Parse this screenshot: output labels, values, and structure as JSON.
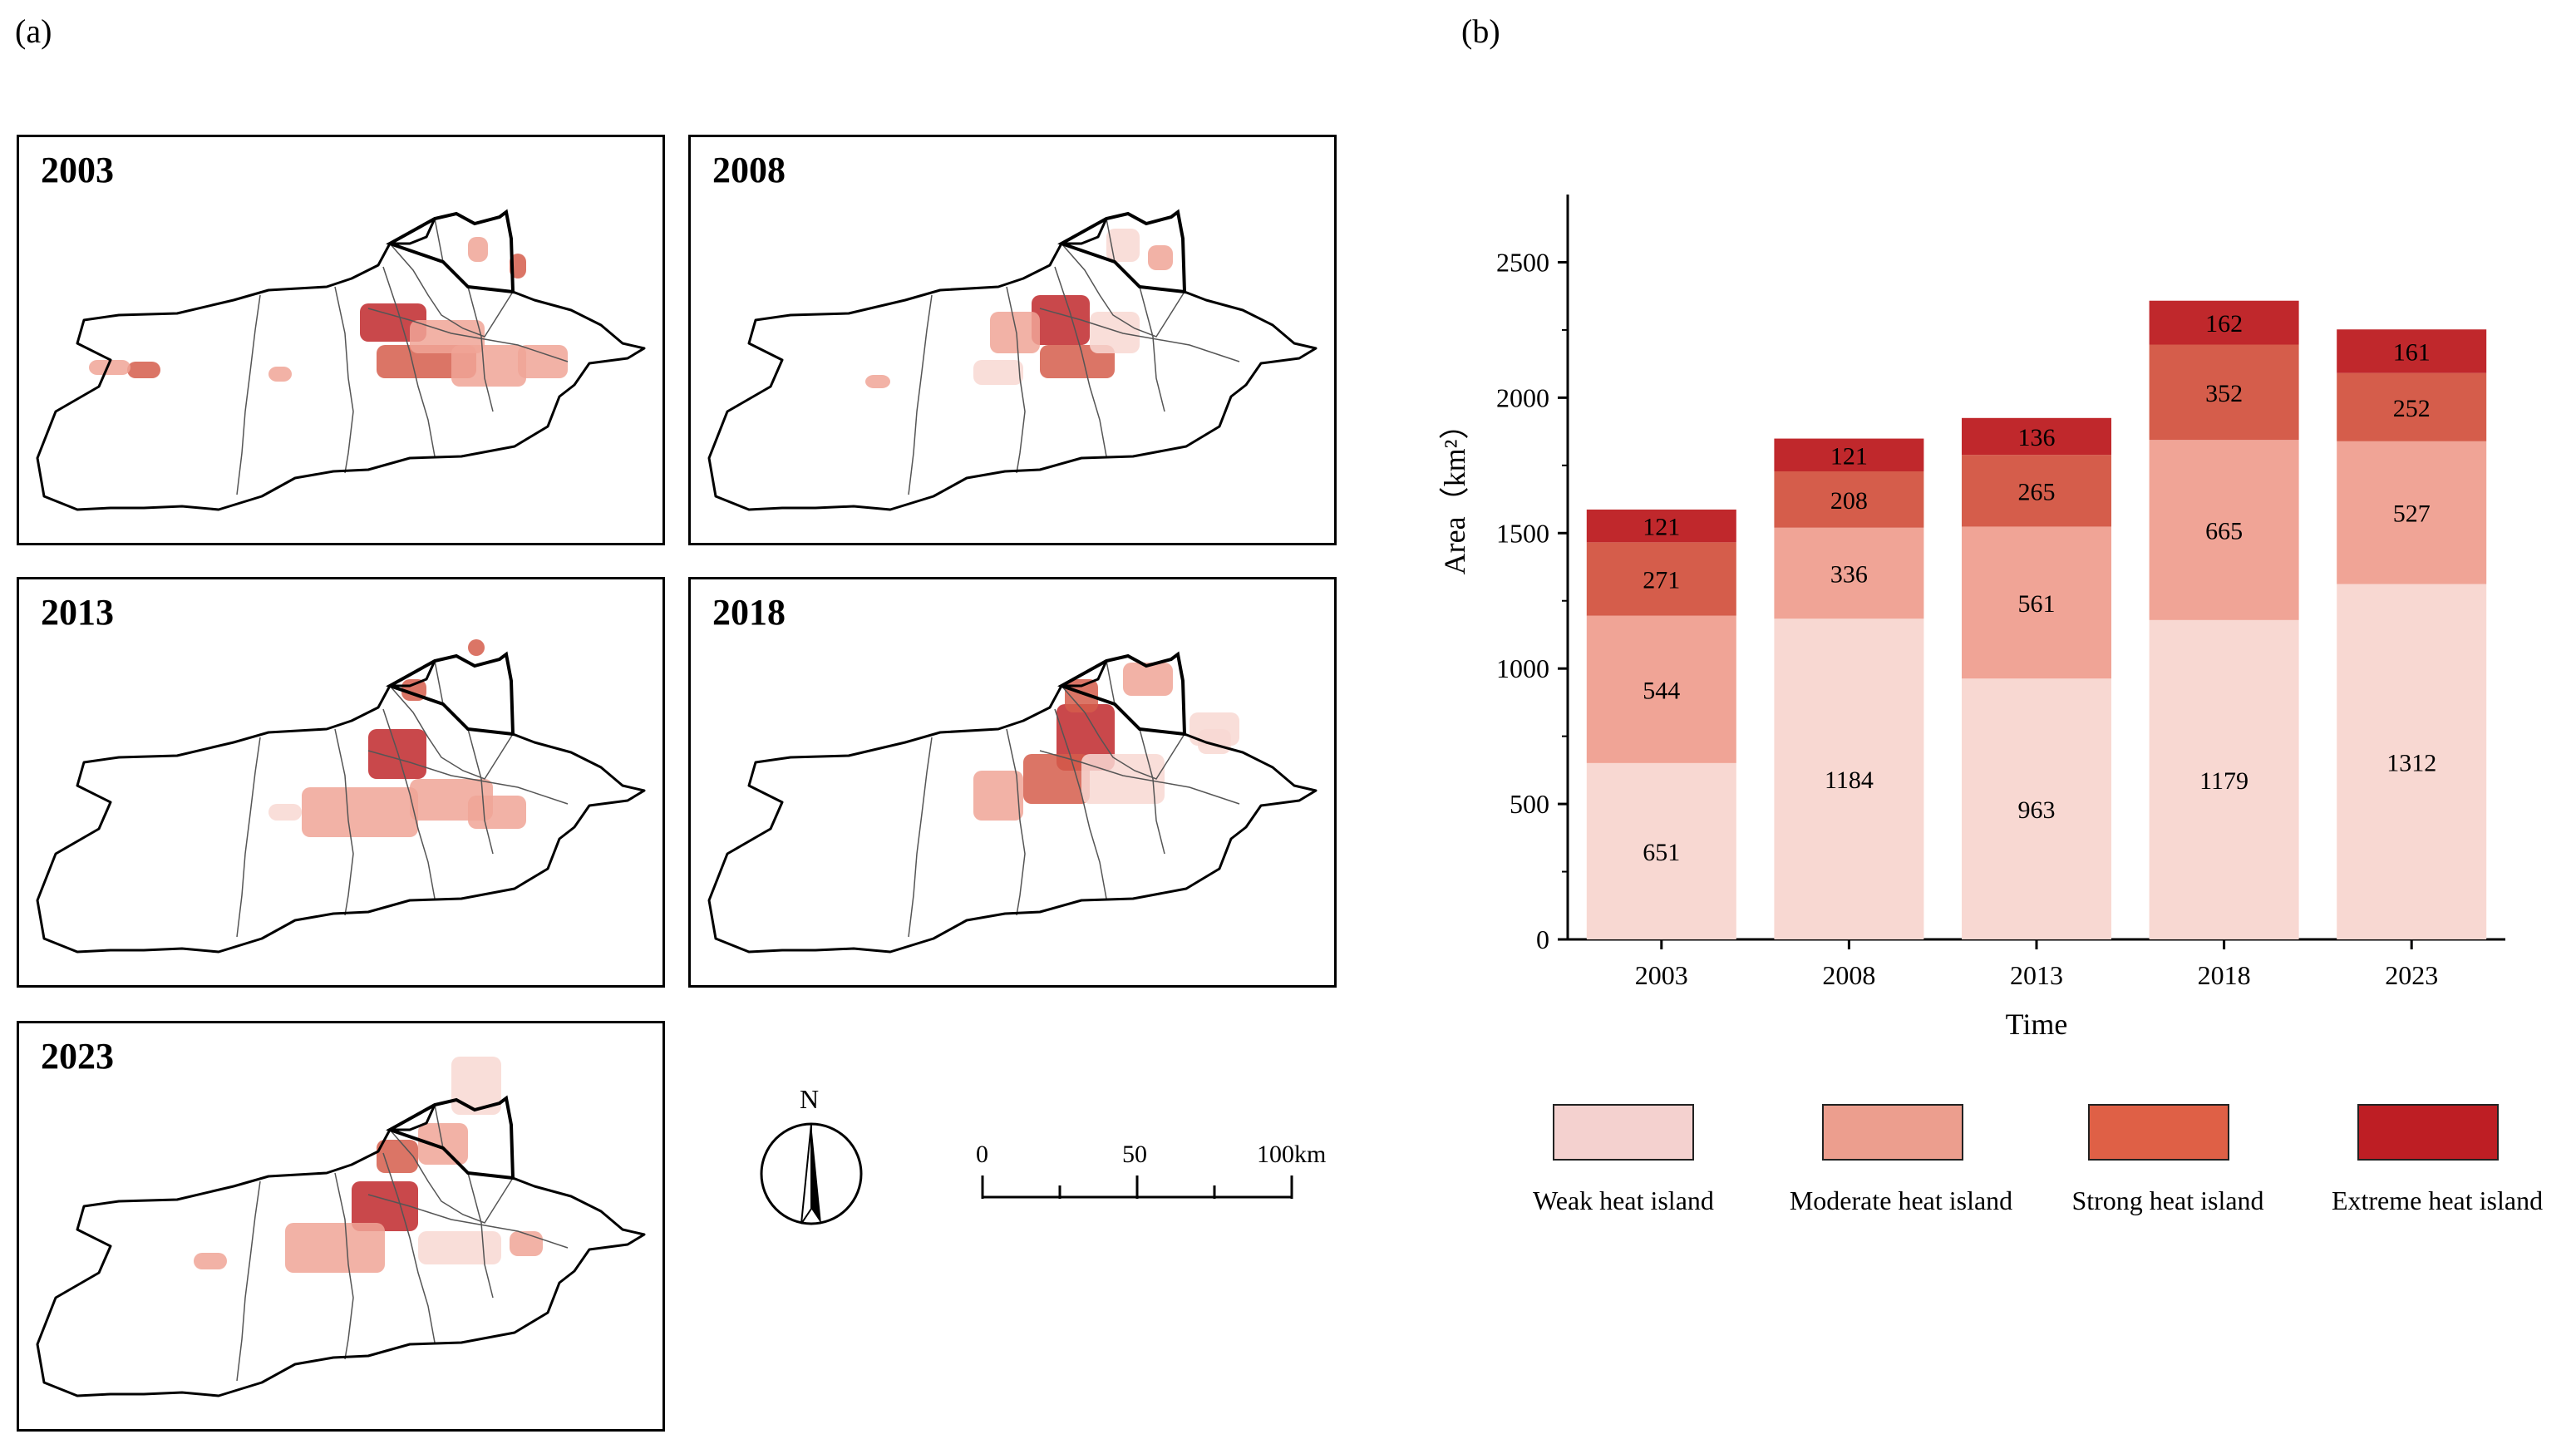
{
  "panel_a": {
    "label": "(a)"
  },
  "panel_b": {
    "label": "(b)"
  },
  "maps": [
    {
      "year": "2003"
    },
    {
      "year": "2008"
    },
    {
      "year": "2013"
    },
    {
      "year": "2018"
    },
    {
      "year": "2023"
    }
  ],
  "north_arrow": {
    "label": "N"
  },
  "scale_bar": {
    "ticks": [
      "0",
      "50",
      "100km"
    ]
  },
  "colors": {
    "weak": "#f8d8d2",
    "moderate": "#f0a496",
    "strong": "#d55d4b",
    "extreme": "#c0282c",
    "legend_weak": "#f4d1cf",
    "legend_moderate": "#ec9e8e",
    "legend_strong": "#df6046",
    "legend_extreme": "#be1e24",
    "outline": "#000000"
  },
  "chart_data": {
    "type": "bar",
    "stacked": true,
    "categories": [
      "2003",
      "2008",
      "2013",
      "2018",
      "2023"
    ],
    "series": [
      {
        "name": "Weak heat island",
        "key": "weak",
        "values": [
          651,
          1184,
          963,
          1179,
          1312
        ]
      },
      {
        "name": "Moderate heat island",
        "key": "moderate",
        "values": [
          544,
          336,
          561,
          665,
          527
        ]
      },
      {
        "name": "Strong heat island",
        "key": "strong",
        "values": [
          271,
          208,
          265,
          352,
          252
        ]
      },
      {
        "name": "Extreme heat island",
        "key": "extreme",
        "values": [
          121,
          121,
          136,
          162,
          161
        ]
      }
    ],
    "xlabel": "Time",
    "ylabel": "Area（km²）",
    "ylim": [
      0,
      2750
    ],
    "yticks": [
      0,
      500,
      1000,
      1500,
      2000,
      2500
    ],
    "legend_position": "bottom"
  },
  "legend": [
    {
      "label": "Weak heat island",
      "color_key": "legend_weak"
    },
    {
      "label": "Moderate heat island",
      "color_key": "legend_moderate"
    },
    {
      "label": "Strong heat island",
      "color_key": "legend_strong"
    },
    {
      "label": "Extreme heat island",
      "color_key": "legend_extreme"
    }
  ]
}
